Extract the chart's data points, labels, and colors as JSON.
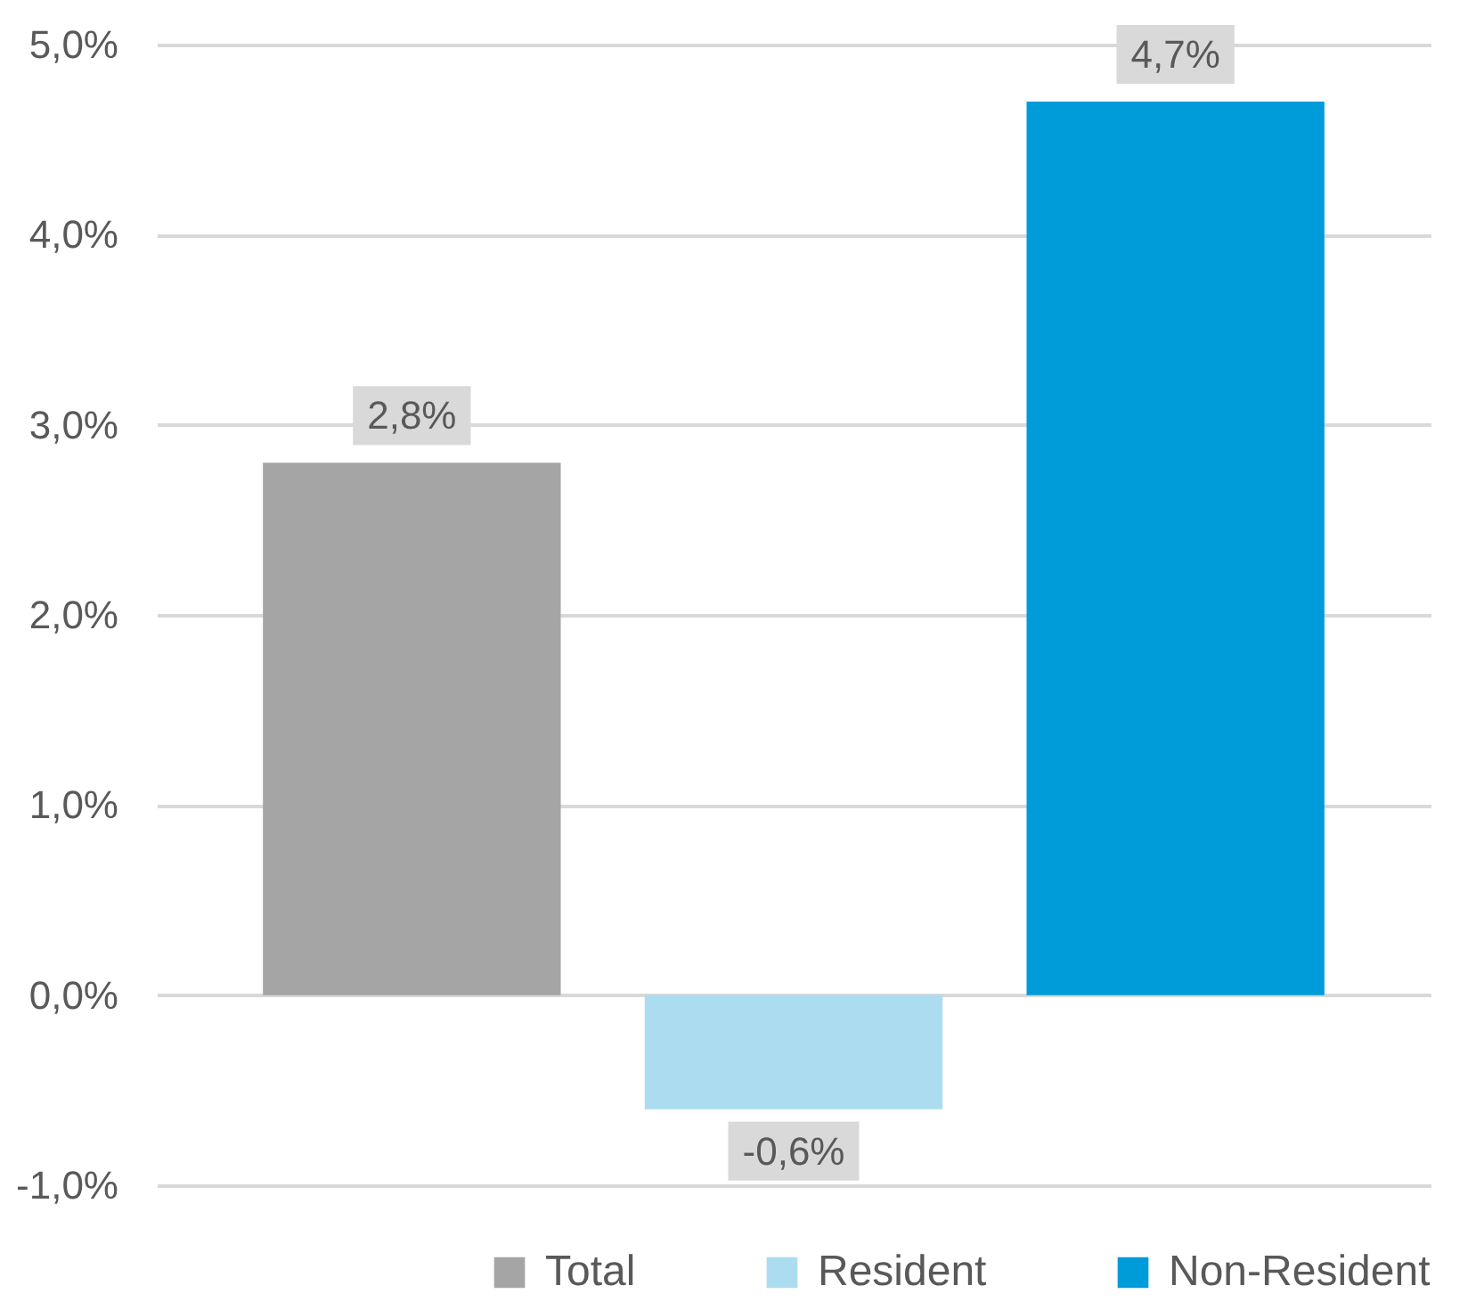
{
  "chart_data": {
    "type": "bar",
    "categories": [
      null
    ],
    "series": [
      {
        "name": "Total",
        "color": "#a5a5a5",
        "values": [
          2.8
        ],
        "value_labels": [
          "2,8%"
        ]
      },
      {
        "name": "Resident",
        "color": "#abdcf0",
        "values": [
          -0.6
        ],
        "value_labels": [
          "-0,6%"
        ]
      },
      {
        "name": "Non-Resident",
        "color": "#009bd9",
        "values": [
          4.7
        ],
        "value_labels": [
          "4,7%"
        ]
      }
    ],
    "ylim": [
      -1,
      5
    ],
    "yticks": [
      {
        "value": -1,
        "label": "-1,0%"
      },
      {
        "value": 0,
        "label": "0,0%"
      },
      {
        "value": 1,
        "label": "1,0%"
      },
      {
        "value": 2,
        "label": "2,0%"
      },
      {
        "value": 3,
        "label": "3,0%"
      },
      {
        "value": 4,
        "label": "4,0%"
      },
      {
        "value": 5,
        "label": "5,0%"
      }
    ],
    "grid": "y",
    "legend": "bottom right"
  }
}
